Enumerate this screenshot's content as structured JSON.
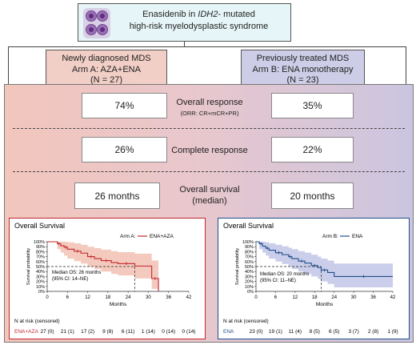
{
  "header": {
    "title_prefix": "Enasidenib in ",
    "title_gene": "IDH2",
    "title_suffix": "- mutated",
    "title_line2": "high-risk myelodysplastic syndrome"
  },
  "arms": {
    "a": {
      "line1": "Newly diagnosed MDS",
      "line2": "Arm A: AZA+ENA",
      "line3": "(N = 27)"
    },
    "b": {
      "line1": "Previously treated MDS",
      "line2": "Arm B: ENA monotherapy",
      "line3": "(N = 23)"
    }
  },
  "outcomes": {
    "overall_response": {
      "label": "Overall response",
      "sublabel": "(ORR: CR+mCR+PR)",
      "arm_a": "74%",
      "arm_b": "35%"
    },
    "complete_response": {
      "label": "Complete response",
      "arm_a": "26%",
      "arm_b": "22%"
    },
    "overall_survival": {
      "label": "Overall survival",
      "sublabel": "(median)",
      "arm_a": "26 months",
      "arm_b": "20 months"
    }
  },
  "colors": {
    "arm_a": "#c0272d",
    "arm_b": "#1f4e8c",
    "arm_a_ci": "#f2b8a8",
    "arm_b_ci": "#b9bde3"
  },
  "chart_data": [
    {
      "type": "line",
      "title": "Overall Survival",
      "legend_prefix": "Arm A:",
      "series": [
        {
          "name": "ENA+AZA",
          "x": [
            0,
            3,
            4,
            5,
            6,
            8,
            10,
            12,
            14,
            16,
            19,
            21,
            26,
            31,
            33
          ],
          "y": [
            100,
            96,
            92,
            89,
            85,
            81,
            77,
            70,
            66,
            62,
            58,
            56,
            51,
            26,
            0
          ],
          "ci_lower": [
            100,
            85,
            78,
            72,
            66,
            61,
            56,
            50,
            45,
            40,
            35,
            32,
            26,
            5,
            0
          ],
          "ci_upper": [
            100,
            100,
            100,
            100,
            99,
            97,
            94,
            90,
            87,
            84,
            81,
            79,
            76,
            62,
            62
          ]
        }
      ],
      "annotation": [
        "Median OS: 26 months",
        "(95% CI: 14–NE)"
      ],
      "median": 26,
      "xlabel": "Months",
      "ylabel": "Survival probability",
      "xticks": [
        "0",
        "6",
        "12",
        "18",
        "24",
        "30",
        "36",
        "42"
      ],
      "yticks": [
        "0%",
        "10%",
        "20%",
        "30%",
        "40%",
        "50%",
        "60%",
        "70%",
        "80%",
        "90%",
        "100%"
      ],
      "xlim": [
        0,
        42
      ],
      "ylim": [
        0,
        100
      ],
      "risk_title": "N at risk (censored)",
      "risk_label": "ENA+AZA",
      "risk_values": [
        "27 (0)",
        "21 (1)",
        "17 (2)",
        "9 (8)",
        "6 (11)",
        "1 (14)",
        "0 (14)",
        "0 (14)"
      ]
    },
    {
      "type": "line",
      "title": "Overall Survival",
      "legend_prefix": "Arm B:",
      "series": [
        {
          "name": "ENA",
          "x": [
            0,
            1,
            2,
            3,
            4,
            6,
            8,
            10,
            11,
            13,
            15,
            17,
            19,
            20,
            22,
            24,
            42
          ],
          "y": [
            100,
            96,
            91,
            87,
            83,
            78,
            74,
            70,
            66,
            61,
            57,
            52,
            48,
            43,
            38,
            30,
            30
          ],
          "ci_lower": [
            100,
            85,
            78,
            72,
            66,
            60,
            55,
            50,
            45,
            40,
            35,
            30,
            25,
            20,
            15,
            8,
            8
          ],
          "ci_upper": [
            100,
            100,
            100,
            99,
            97,
            94,
            91,
            88,
            85,
            81,
            78,
            74,
            70,
            66,
            62,
            56,
            56
          ]
        }
      ],
      "annotation": [
        "Median OS: 20 months",
        "(95% CI: 11–NE)"
      ],
      "median": 20,
      "xlabel": "Months",
      "ylabel": "Survival probability",
      "xticks": [
        "0",
        "6",
        "12",
        "18",
        "24",
        "30",
        "36",
        "42"
      ],
      "yticks": [
        "0%",
        "10%",
        "20%",
        "30%",
        "40%",
        "50%",
        "60%",
        "70%",
        "80%",
        "90%",
        "100%"
      ],
      "xlim": [
        0,
        42
      ],
      "ylim": [
        0,
        100
      ],
      "risk_title": "N at risk (censored)",
      "risk_label": "ENA",
      "risk_values": [
        "23 (0)",
        "19 (1)",
        "11 (4)",
        "8 (5)",
        "6 (5)",
        "3 (7)",
        "2 (8)",
        "1 (9)"
      ]
    }
  ]
}
